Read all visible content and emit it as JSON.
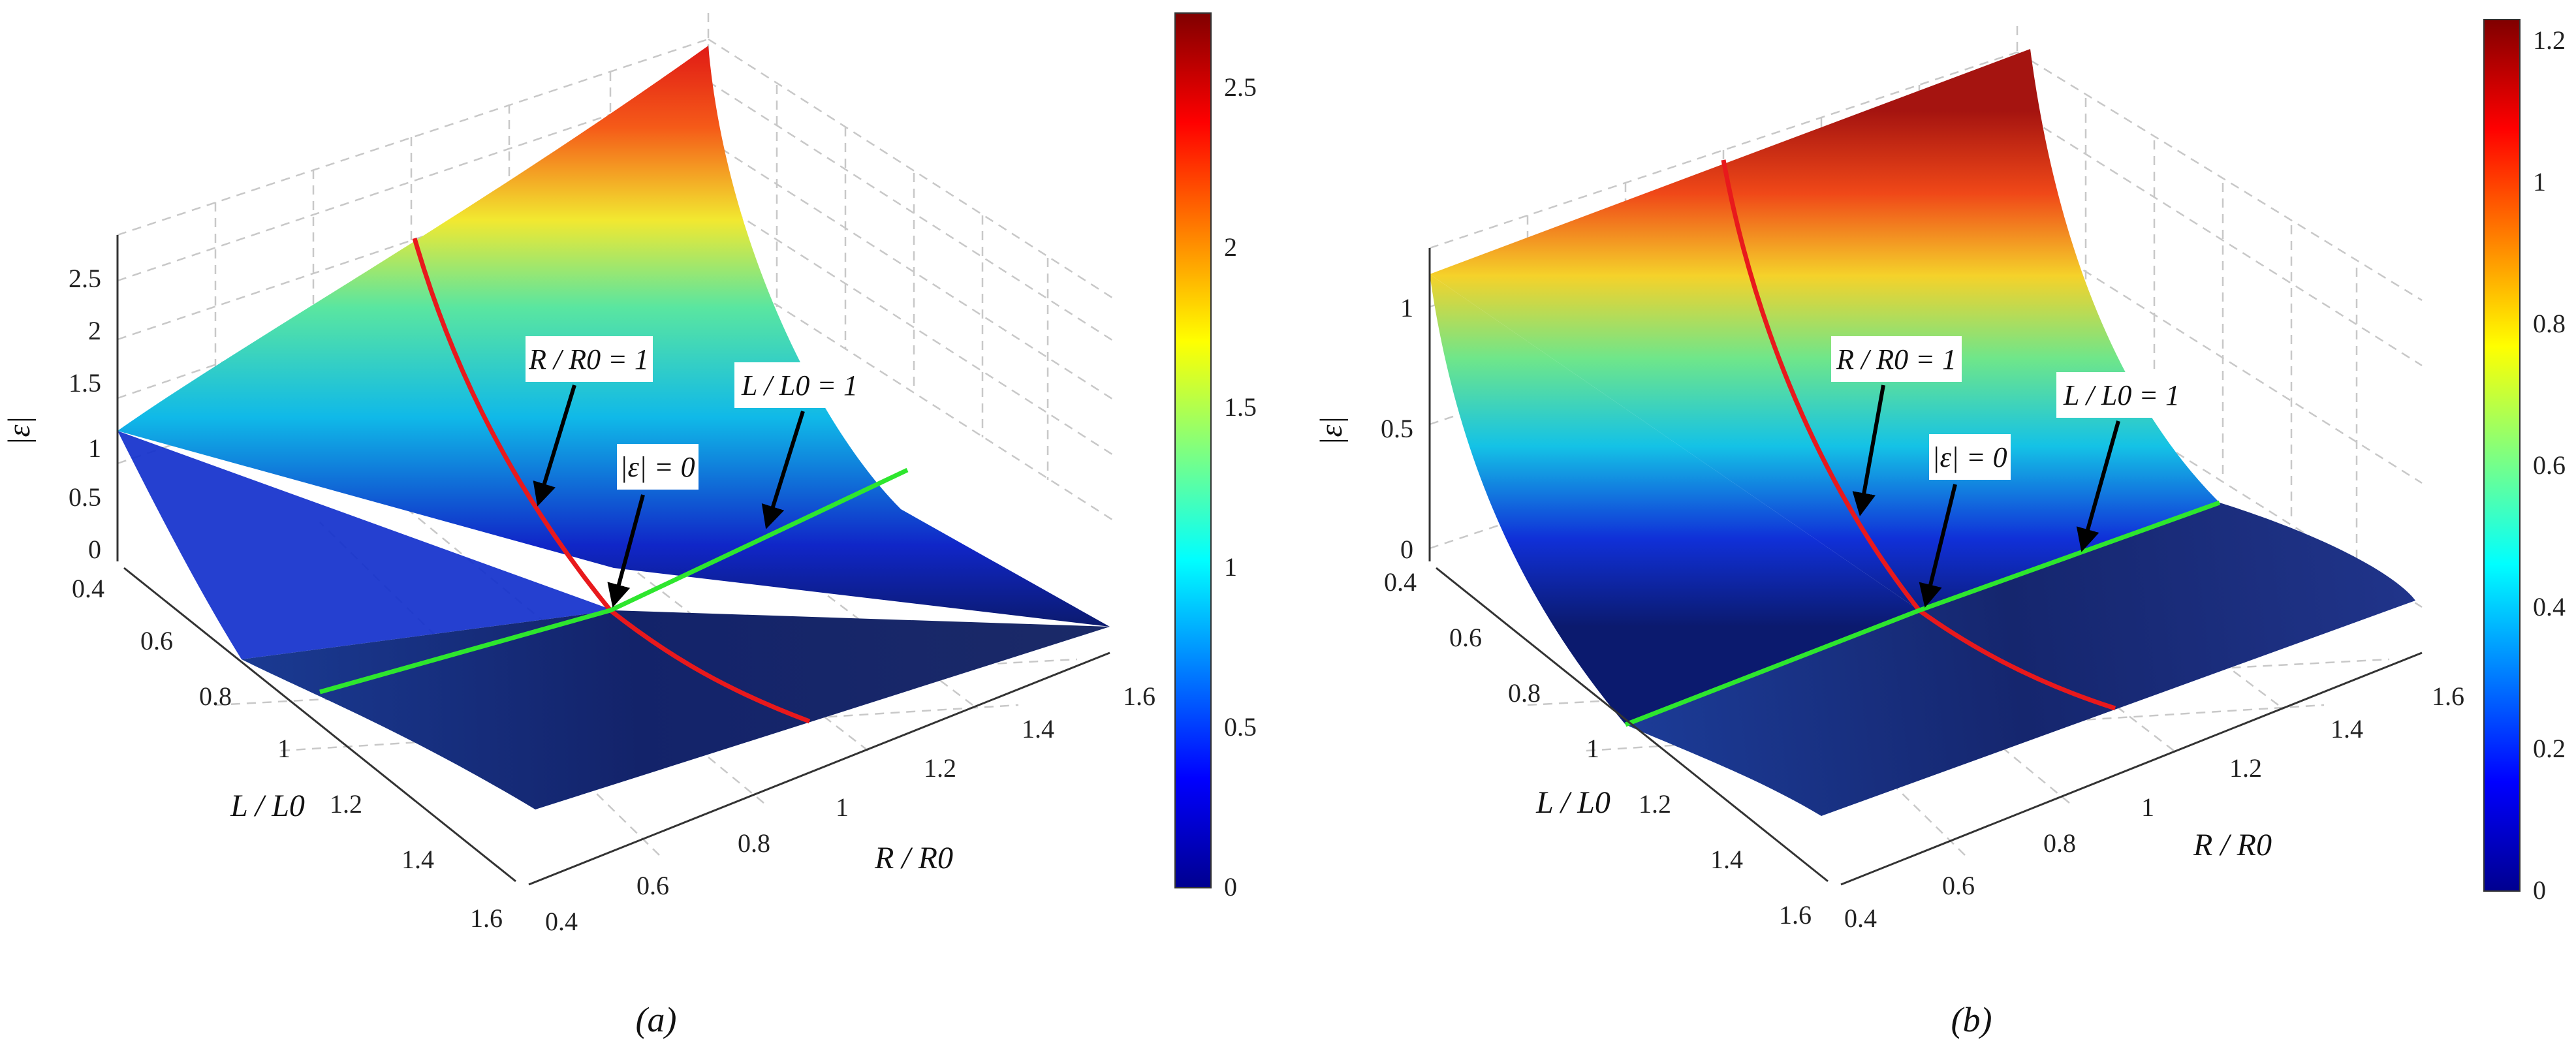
{
  "chart_data": [
    {
      "type": "surface",
      "subtitle": "(a)",
      "xlabel": "R / R0",
      "ylabel": "L / L0",
      "zlabel": "|ε|",
      "x_ticks": [
        0.4,
        0.6,
        0.8,
        1,
        1.2,
        1.4,
        1.6
      ],
      "y_ticks": [
        0.4,
        0.6,
        0.8,
        1,
        1.2,
        1.4,
        1.6
      ],
      "z_ticks": [
        0,
        0.5,
        1,
        1.5,
        2,
        2.5
      ],
      "xlim": [
        0.4,
        1.6
      ],
      "ylim": [
        0.4,
        1.6
      ],
      "zlim": [
        0,
        2.9
      ],
      "colorbar": {
        "ticks": [
          0,
          0.5,
          1,
          1.5,
          2,
          2.5
        ],
        "range": [
          0,
          2.7
        ]
      },
      "annotations": [
        {
          "id": "r",
          "text": "R / R0 = 1"
        },
        {
          "id": "z",
          "text": "|ε| = 0"
        },
        {
          "id": "l",
          "text": "L / L0 = 1"
        }
      ],
      "surface_points": [
        {
          "R": 0.4,
          "L": 0.4,
          "eps": 2.7
        },
        {
          "R": 1.6,
          "L": 0.4,
          "eps": 1.15
        },
        {
          "R": 1.0,
          "L": 1.0,
          "eps": 0
        },
        {
          "R": 0.4,
          "L": 1.6,
          "eps": 0.3
        },
        {
          "R": 1.6,
          "L": 1.6,
          "eps": 0.25
        }
      ],
      "curves": [
        {
          "name": "R / R0 = 1",
          "color": "#e8191c"
        },
        {
          "name": "L / L0 = 1",
          "color": "#2ee62e"
        }
      ],
      "grid": true
    },
    {
      "type": "surface",
      "subtitle": "(b)",
      "xlabel": "R / R0",
      "ylabel": "L / L0",
      "zlabel": "|ε|",
      "x_ticks": [
        0.4,
        0.6,
        0.8,
        1,
        1.2,
        1.4,
        1.6
      ],
      "y_ticks": [
        0.4,
        0.6,
        0.8,
        1,
        1.2,
        1.4,
        1.6
      ],
      "z_ticks": [
        0,
        0.5,
        1
      ],
      "xlim": [
        0.4,
        1.6
      ],
      "ylim": [
        0.4,
        1.6
      ],
      "zlim": [
        0,
        1.25
      ],
      "colorbar": {
        "ticks": [
          0,
          0.2,
          0.4,
          0.6,
          0.8,
          1,
          1.2
        ],
        "range": [
          0,
          1.23
        ]
      },
      "annotations": [
        {
          "id": "r",
          "text": "R / R0 = 1"
        },
        {
          "id": "z",
          "text": "|ε| = 0"
        },
        {
          "id": "l",
          "text": "L / L0 = 1"
        }
      ],
      "surface_points": [
        {
          "R": 0.4,
          "L": 0.4,
          "eps": 1.23
        },
        {
          "R": 1.6,
          "L": 0.4,
          "eps": 1.15
        },
        {
          "R": 1.0,
          "L": 1.0,
          "eps": 0
        },
        {
          "R": 0.4,
          "L": 1.6,
          "eps": 0.15
        },
        {
          "R": 1.6,
          "L": 1.6,
          "eps": 0.15
        }
      ],
      "curves": [
        {
          "name": "R / R0 = 1",
          "color": "#e8191c"
        },
        {
          "name": "L / L0 = 1",
          "color": "#2ee62e"
        }
      ],
      "grid": true
    }
  ]
}
